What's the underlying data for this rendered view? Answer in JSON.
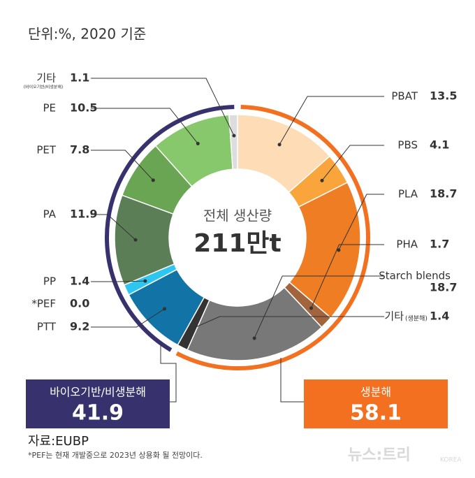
{
  "chart_data": {
    "type": "donut",
    "title": "단위:%, 2020 기준",
    "center_label": "전체 생산량",
    "center_value": "211만t",
    "groups": [
      {
        "name": "생분해",
        "total": 58.1,
        "color": "#f37021",
        "items": [
          {
            "name": "PBAT",
            "value": 13.5,
            "color": "#fddcb6"
          },
          {
            "name": "PBS",
            "value": 4.1,
            "color": "#f9a53b"
          },
          {
            "name": "PLA",
            "value": 18.7,
            "color": "#ee7d23"
          },
          {
            "name": "PHA",
            "value": 1.7,
            "color": "#a1643c"
          },
          {
            "name": "Starch blends",
            "value": 18.7,
            "color": "#787878"
          },
          {
            "name": "기타",
            "sub": "(생분해)",
            "value": 1.4,
            "color": "#333333"
          }
        ]
      },
      {
        "name": "바이오기반/비생분해",
        "total": 41.9,
        "color": "#37326e",
        "items": [
          {
            "name": "PTT",
            "value": 9.2,
            "color": "#1274a6"
          },
          {
            "name": "*PEF",
            "value": 0,
            "value_label": "0.0",
            "color": "#1274a6"
          },
          {
            "name": "PP",
            "value": 1.4,
            "color": "#2dc6f1"
          },
          {
            "name": "PA",
            "value": 11.9,
            "color": "#5c7e56"
          },
          {
            "name": "PET",
            "value": 7.8,
            "color": "#6aa554"
          },
          {
            "name": "PE",
            "value": 10.5,
            "color": "#88c86c"
          },
          {
            "name": "기타",
            "sub": "(바이오기반/비생분해)",
            "value": 1.1,
            "color": "#dddddd"
          }
        ]
      }
    ],
    "source": "자료:EUBP",
    "note": "*PEF는 현재 개발중으로 2023년 상용화 될 전망이다.",
    "brand": "뉴스:트리",
    "brand_sub": "KOREA"
  }
}
